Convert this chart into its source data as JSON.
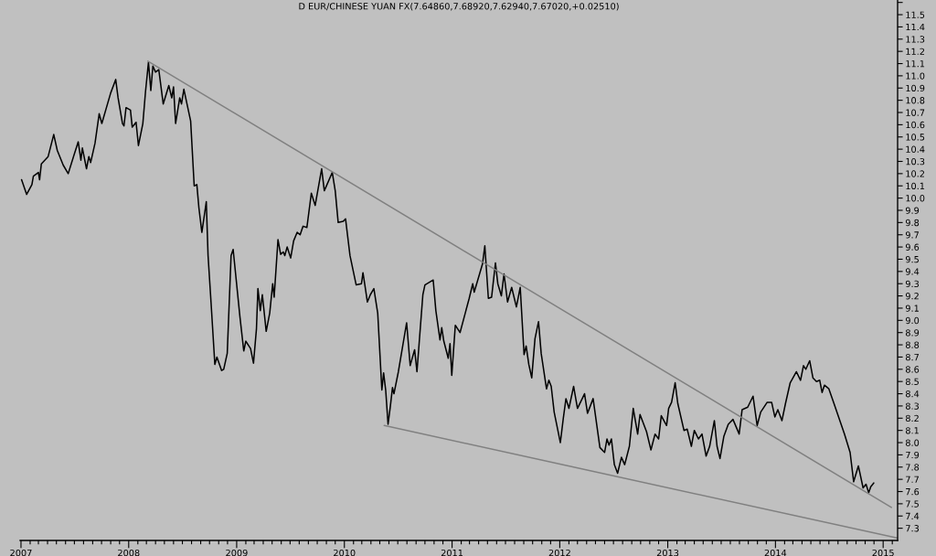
{
  "chart_data": {
    "type": "line",
    "title": "D EUR/CHINESE YUAN FX(7.64860,7.68920,7.62940,7.67020,+0.02510)",
    "x": [
      "2007-01-03",
      "2007-01-20",
      "2007-02-07",
      "2007-02-12",
      "2007-03-01",
      "2007-03-05",
      "2007-03-11",
      "2007-04-03",
      "2007-04-22",
      "2007-05-04",
      "2007-05-24",
      "2007-06-10",
      "2007-06-28",
      "2007-07-14",
      "2007-07-23",
      "2007-07-28",
      "2007-08-11",
      "2007-08-19",
      "2007-08-25",
      "2007-09-09",
      "2007-09-23",
      "2007-10-02",
      "2007-11-01",
      "2007-11-18",
      "2007-11-26",
      "2007-12-11",
      "2007-12-16",
      "2007-12-23",
      "2008-01-07",
      "2008-01-13",
      "2008-01-26",
      "2008-02-03",
      "2008-02-18",
      "2008-02-27",
      "2008-03-08",
      "2008-03-16",
      "2008-03-23",
      "2008-04-01",
      "2008-04-12",
      "2008-04-27",
      "2008-05-16",
      "2008-05-26",
      "2008-06-01",
      "2008-06-08",
      "2008-06-22",
      "2008-06-28",
      "2008-07-06",
      "2008-07-29",
      "2008-08-10",
      "2008-08-19",
      "2008-08-26",
      "2008-09-05",
      "2008-09-14",
      "2008-09-20",
      "2008-09-26",
      "2008-10-06",
      "2008-10-19",
      "2008-10-26",
      "2008-11-11",
      "2008-11-18",
      "2008-11-30",
      "2008-12-13",
      "2008-12-20",
      "2009-01-12",
      "2009-01-25",
      "2009-02-01",
      "2009-02-17",
      "2009-02-27",
      "2009-03-09",
      "2009-03-14",
      "2009-03-22",
      "2009-03-29",
      "2009-04-11",
      "2009-04-23",
      "2009-05-03",
      "2009-05-08",
      "2009-05-21",
      "2009-05-30",
      "2009-06-08",
      "2009-06-13",
      "2009-06-21",
      "2009-07-03",
      "2009-07-13",
      "2009-07-25",
      "2009-08-04",
      "2009-08-14",
      "2009-08-27",
      "2009-09-11",
      "2009-09-24",
      "2009-10-16",
      "2009-10-25",
      "2009-11-21",
      "2009-12-01",
      "2009-12-11",
      "2009-12-28",
      "2010-01-05",
      "2010-01-20",
      "2010-02-10",
      "2010-02-28",
      "2010-03-05",
      "2010-03-12",
      "2010-03-20",
      "2010-03-30",
      "2010-04-11",
      "2010-04-24",
      "2010-05-08",
      "2010-05-14",
      "2010-05-21",
      "2010-05-29",
      "2010-06-06",
      "2010-06-13",
      "2010-06-18",
      "2010-07-03",
      "2010-07-31",
      "2010-08-12",
      "2010-08-27",
      "2010-09-04",
      "2010-09-11",
      "2010-09-24",
      "2010-10-01",
      "2010-10-29",
      "2010-11-07",
      "2010-11-21",
      "2010-11-27",
      "2010-12-04",
      "2010-12-19",
      "2010-12-25",
      "2010-12-31",
      "2011-01-12",
      "2011-01-28",
      "2011-02-28",
      "2011-03-12",
      "2011-03-17",
      "2011-04-14",
      "2011-04-22",
      "2011-05-04",
      "2011-05-15",
      "2011-05-28",
      "2011-06-05",
      "2011-06-17",
      "2011-06-26",
      "2011-07-08",
      "2011-07-22",
      "2011-08-07",
      "2011-08-20",
      "2011-09-02",
      "2011-09-09",
      "2011-09-18",
      "2011-09-28",
      "2011-10-09",
      "2011-10-21",
      "2011-10-30",
      "2011-11-17",
      "2011-11-25",
      "2011-12-03",
      "2011-12-13",
      "2012-01-03",
      "2012-01-13",
      "2012-01-22",
      "2012-02-01",
      "2012-02-17",
      "2012-03-01",
      "2012-03-25",
      "2012-04-04",
      "2012-04-23",
      "2012-05-16",
      "2012-06-01",
      "2012-06-09",
      "2012-06-16",
      "2012-06-24",
      "2012-07-04",
      "2012-07-15",
      "2012-07-28",
      "2012-08-08",
      "2012-08-24",
      "2012-09-06",
      "2012-09-21",
      "2012-09-29",
      "2012-10-21",
      "2012-11-05",
      "2012-11-19",
      "2012-12-01",
      "2012-12-10",
      "2012-12-28",
      "2013-01-04",
      "2013-01-14",
      "2013-01-26",
      "2013-02-04",
      "2013-02-25",
      "2013-03-08",
      "2013-03-22",
      "2013-04-01",
      "2013-04-15",
      "2013-04-27",
      "2013-05-11",
      "2013-05-23",
      "2013-06-08",
      "2013-06-17",
      "2013-06-27",
      "2013-07-10",
      "2013-07-25",
      "2013-08-10",
      "2013-08-31",
      "2013-09-10",
      "2013-09-29",
      "2013-10-17",
      "2013-10-31",
      "2013-11-12",
      "2013-12-04",
      "2013-12-19",
      "2013-12-30",
      "2014-01-09",
      "2014-01-23",
      "2014-02-04",
      "2014-02-20",
      "2014-03-13",
      "2014-03-27",
      "2014-04-06",
      "2014-04-14",
      "2014-04-27",
      "2014-05-08",
      "2014-05-20",
      "2014-05-31",
      "2014-06-08",
      "2014-06-16",
      "2014-07-01",
      "2014-07-17",
      "2014-08-23",
      "2014-09-11",
      "2014-09-23",
      "2014-10-09",
      "2014-10-25",
      "2014-11-04",
      "2014-11-13",
      "2014-11-20",
      "2014-11-30"
    ],
    "series": [
      {
        "color": "#000000",
        "values": [
          10.15,
          10.03,
          10.11,
          10.18,
          10.21,
          10.15,
          10.28,
          10.34,
          10.52,
          10.39,
          10.27,
          10.2,
          10.34,
          10.46,
          10.31,
          10.41,
          10.24,
          10.34,
          10.29,
          10.45,
          10.69,
          10.61,
          10.86,
          10.97,
          10.82,
          10.61,
          10.59,
          10.74,
          10.72,
          10.58,
          10.62,
          10.43,
          10.61,
          10.87,
          11.11,
          10.88,
          11.08,
          11.03,
          11.05,
          10.77,
          10.92,
          10.82,
          10.91,
          10.61,
          10.82,
          10.77,
          10.89,
          10.63,
          10.1,
          10.11,
          9.92,
          9.72,
          9.87,
          9.97,
          9.53,
          9.15,
          8.64,
          8.7,
          8.59,
          8.6,
          8.73,
          9.53,
          9.58,
          9.03,
          8.75,
          8.83,
          8.77,
          8.65,
          8.93,
          9.26,
          9.08,
          9.21,
          8.91,
          9.06,
          9.3,
          9.19,
          9.66,
          9.54,
          9.56,
          9.53,
          9.6,
          9.51,
          9.65,
          9.72,
          9.7,
          9.77,
          9.76,
          10.04,
          9.94,
          10.24,
          10.06,
          10.21,
          10.06,
          9.8,
          9.81,
          9.83,
          9.53,
          9.29,
          9.3,
          9.39,
          9.28,
          9.15,
          9.21,
          9.26,
          9.06,
          8.43,
          8.57,
          8.43,
          8.15,
          8.3,
          8.45,
          8.4,
          8.58,
          8.98,
          8.63,
          8.76,
          8.58,
          8.8,
          9.21,
          9.29,
          9.33,
          9.08,
          8.84,
          8.94,
          8.83,
          8.69,
          8.81,
          8.55,
          8.96,
          8.9,
          9.18,
          9.3,
          9.23,
          9.46,
          9.61,
          9.18,
          9.19,
          9.47,
          9.3,
          9.2,
          9.38,
          9.15,
          9.27,
          9.11,
          9.27,
          8.72,
          8.79,
          8.64,
          8.53,
          8.85,
          8.99,
          8.73,
          8.44,
          8.51,
          8.46,
          8.25,
          8.0,
          8.2,
          8.36,
          8.28,
          8.46,
          8.28,
          8.4,
          8.24,
          8.36,
          7.96,
          7.92,
          8.03,
          7.98,
          8.03,
          7.82,
          7.75,
          7.88,
          7.82,
          7.97,
          8.28,
          8.07,
          8.23,
          8.09,
          7.94,
          8.07,
          8.03,
          8.22,
          8.14,
          8.28,
          8.33,
          8.49,
          8.32,
          8.1,
          8.11,
          7.97,
          8.1,
          8.03,
          8.07,
          7.89,
          7.97,
          8.18,
          7.97,
          7.87,
          8.05,
          8.15,
          8.19,
          8.07,
          8.27,
          8.29,
          8.38,
          8.14,
          8.25,
          8.33,
          8.33,
          8.21,
          8.27,
          8.18,
          8.32,
          8.49,
          8.58,
          8.51,
          8.63,
          8.6,
          8.67,
          8.53,
          8.5,
          8.51,
          8.41,
          8.47,
          8.44,
          8.33,
          8.07,
          7.92,
          7.68,
          7.81,
          7.63,
          7.66,
          7.59,
          7.64,
          7.67
        ]
      },
      {
        "color": "#808080",
        "x": [
          "2008-03-06",
          "2015-01-29"
        ],
        "values": [
          11.12,
          7.47
        ]
      },
      {
        "color": "#808080",
        "x": [
          "2010-05-16",
          "2015-02-17"
        ],
        "values": [
          8.14,
          7.22
        ]
      }
    ],
    "xlim": [
      "2006-12-29",
      "2015-02-19"
    ],
    "xticks": [
      {
        "value": "2007-01-01",
        "label": "2007"
      },
      {
        "value": "2007-02-01",
        "label": null
      },
      {
        "value": "2007-03-01",
        "label": null
      },
      {
        "value": "2007-04-01",
        "label": null
      },
      {
        "value": "2007-05-01",
        "label": null
      },
      {
        "value": "2007-06-01",
        "label": null
      },
      {
        "value": "2007-07-01",
        "label": null
      },
      {
        "value": "2007-08-01",
        "label": null
      },
      {
        "value": "2007-09-01",
        "label": null
      },
      {
        "value": "2007-10-01",
        "label": null
      },
      {
        "value": "2007-11-01",
        "label": null
      },
      {
        "value": "2007-12-01",
        "label": null
      },
      {
        "value": "2008-01-01",
        "label": "2008"
      },
      {
        "value": "2008-02-01",
        "label": null
      },
      {
        "value": "2008-03-01",
        "label": null
      },
      {
        "value": "2008-04-01",
        "label": null
      },
      {
        "value": "2008-05-01",
        "label": null
      },
      {
        "value": "2008-06-01",
        "label": null
      },
      {
        "value": "2008-07-01",
        "label": null
      },
      {
        "value": "2008-08-01",
        "label": null
      },
      {
        "value": "2008-09-01",
        "label": null
      },
      {
        "value": "2008-10-01",
        "label": null
      },
      {
        "value": "2008-11-01",
        "label": null
      },
      {
        "value": "2008-12-01",
        "label": null
      },
      {
        "value": "2009-01-01",
        "label": "2009"
      },
      {
        "value": "2009-02-01",
        "label": null
      },
      {
        "value": "2009-03-01",
        "label": null
      },
      {
        "value": "2009-04-01",
        "label": null
      },
      {
        "value": "2009-05-01",
        "label": null
      },
      {
        "value": "2009-06-01",
        "label": null
      },
      {
        "value": "2009-07-01",
        "label": null
      },
      {
        "value": "2009-08-01",
        "label": null
      },
      {
        "value": "2009-09-01",
        "label": null
      },
      {
        "value": "2009-10-01",
        "label": null
      },
      {
        "value": "2009-11-01",
        "label": null
      },
      {
        "value": "2009-12-01",
        "label": null
      },
      {
        "value": "2010-01-01",
        "label": "2010"
      },
      {
        "value": "2010-02-01",
        "label": null
      },
      {
        "value": "2010-03-01",
        "label": null
      },
      {
        "value": "2010-04-01",
        "label": null
      },
      {
        "value": "2010-05-01",
        "label": null
      },
      {
        "value": "2010-06-01",
        "label": null
      },
      {
        "value": "2010-07-01",
        "label": null
      },
      {
        "value": "2010-08-01",
        "label": null
      },
      {
        "value": "2010-09-01",
        "label": null
      },
      {
        "value": "2010-10-01",
        "label": null
      },
      {
        "value": "2010-11-01",
        "label": null
      },
      {
        "value": "2010-12-01",
        "label": null
      },
      {
        "value": "2011-01-01",
        "label": "2011"
      },
      {
        "value": "2011-02-01",
        "label": null
      },
      {
        "value": "2011-03-01",
        "label": null
      },
      {
        "value": "2011-04-01",
        "label": null
      },
      {
        "value": "2011-05-01",
        "label": null
      },
      {
        "value": "2011-06-01",
        "label": null
      },
      {
        "value": "2011-07-01",
        "label": null
      },
      {
        "value": "2011-08-01",
        "label": null
      },
      {
        "value": "2011-09-01",
        "label": null
      },
      {
        "value": "2011-10-01",
        "label": null
      },
      {
        "value": "2011-11-01",
        "label": null
      },
      {
        "value": "2011-12-01",
        "label": null
      },
      {
        "value": "2012-01-01",
        "label": "2012"
      },
      {
        "value": "2012-02-01",
        "label": null
      },
      {
        "value": "2012-03-01",
        "label": null
      },
      {
        "value": "2012-04-01",
        "label": null
      },
      {
        "value": "2012-05-01",
        "label": null
      },
      {
        "value": "2012-06-01",
        "label": null
      },
      {
        "value": "2012-07-01",
        "label": null
      },
      {
        "value": "2012-08-01",
        "label": null
      },
      {
        "value": "2012-09-01",
        "label": null
      },
      {
        "value": "2012-10-01",
        "label": null
      },
      {
        "value": "2012-11-01",
        "label": null
      },
      {
        "value": "2012-12-01",
        "label": null
      },
      {
        "value": "2013-01-01",
        "label": "2013"
      },
      {
        "value": "2013-02-01",
        "label": null
      },
      {
        "value": "2013-03-01",
        "label": null
      },
      {
        "value": "2013-04-01",
        "label": null
      },
      {
        "value": "2013-05-01",
        "label": null
      },
      {
        "value": "2013-06-01",
        "label": null
      },
      {
        "value": "2013-07-01",
        "label": null
      },
      {
        "value": "2013-08-01",
        "label": null
      },
      {
        "value": "2013-09-01",
        "label": null
      },
      {
        "value": "2013-10-01",
        "label": null
      },
      {
        "value": "2013-11-01",
        "label": null
      },
      {
        "value": "2013-12-01",
        "label": null
      },
      {
        "value": "2014-01-01",
        "label": "2014"
      },
      {
        "value": "2014-02-01",
        "label": null
      },
      {
        "value": "2014-03-01",
        "label": null
      },
      {
        "value": "2014-04-01",
        "label": null
      },
      {
        "value": "2014-05-01",
        "label": null
      },
      {
        "value": "2014-06-01",
        "label": null
      },
      {
        "value": "2014-07-01",
        "label": null
      },
      {
        "value": "2014-08-01",
        "label": null
      },
      {
        "value": "2014-09-01",
        "label": null
      },
      {
        "value": "2014-10-01",
        "label": null
      },
      {
        "value": "2014-11-01",
        "label": null
      },
      {
        "value": "2014-12-01",
        "label": null
      },
      {
        "value": "2015-01-01",
        "label": "2015"
      },
      {
        "value": "2015-02-01",
        "label": null
      }
    ],
    "ylim": [
      7.2,
      11.62
    ],
    "yticks": [
      7.3,
      7.4,
      7.5,
      7.6,
      7.7,
      7.8,
      7.9,
      {
        "value": 8,
        "label": "8.0"
      },
      8.1,
      8.2,
      8.3,
      8.4,
      8.5,
      8.6,
      8.7,
      8.8,
      8.9,
      {
        "value": 9,
        "label": "9.0"
      },
      9.1,
      9.2,
      9.3,
      9.4,
      9.5,
      9.6,
      9.7,
      9.8,
      9.9,
      {
        "value": 10,
        "label": "10.0"
      },
      10.1,
      10.2,
      10.3,
      10.4,
      10.5,
      10.6,
      10.7,
      10.8,
      10.9,
      {
        "value": 11,
        "label": "11.0"
      },
      11.1,
      11.2,
      11.3,
      11.4,
      11.5,
      {
        "value": 11.6,
        "label": null
      }
    ]
  }
}
